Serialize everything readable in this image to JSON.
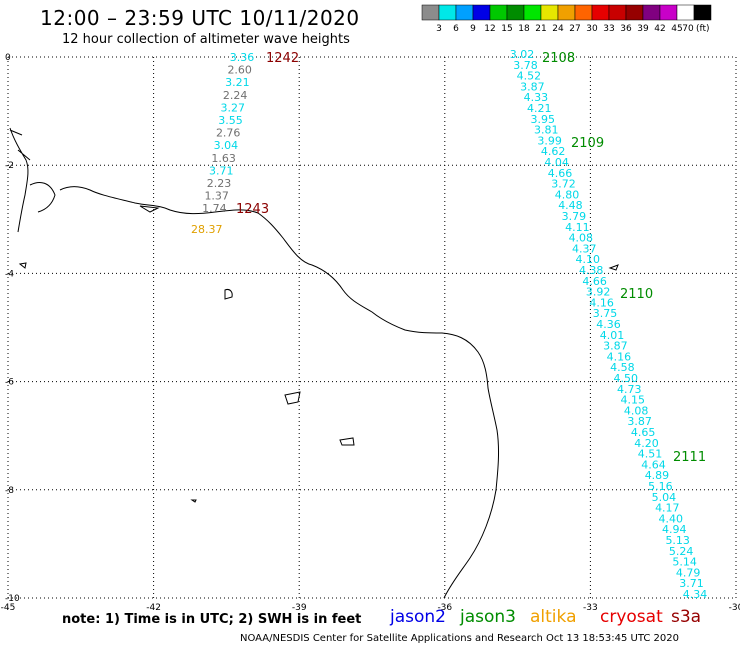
{
  "header": {
    "title": "12:00 – 23:59 UTC 10/11/2020",
    "subtitle": "12 hour collection of altimeter wave heights"
  },
  "legend": {
    "unit": "(ft)",
    "colors": [
      "#8c8c8c",
      "#00e8e8",
      "#00a0ff",
      "#0000e6",
      "#00c800",
      "#008c00",
      "#00e600",
      "#e6e600",
      "#f0a000",
      "#ff6400",
      "#e60000",
      "#c80000",
      "#960000",
      "#800080",
      "#c800c8",
      "#ffffff",
      "#000000"
    ],
    "labels": [
      "3",
      "6",
      "9",
      "12",
      "15",
      "18",
      "21",
      "24",
      "27",
      "30",
      "33",
      "36",
      "39",
      "42",
      "45",
      "70"
    ]
  },
  "axes": {
    "x_ticks": [
      "-45",
      "-42",
      "-39",
      "-36",
      "-33",
      "-30"
    ],
    "y_ticks": [
      "0",
      "-2",
      "-4",
      "-6",
      "-8",
      "-10"
    ]
  },
  "tracks": {
    "track_1242": {
      "label": "1242",
      "values": [
        "3.36",
        "2.60",
        "3.21",
        "2.24",
        "3.27",
        "3.55",
        "2.76",
        "3.04",
        "1.63",
        "3.71",
        "2.23",
        "1.37",
        "1.74"
      ],
      "colors": [
        "cyan",
        "gray",
        "cyan",
        "gray",
        "cyan",
        "cyan",
        "gray",
        "cyan",
        "gray",
        "cyan",
        "gray",
        "gray",
        "gray"
      ]
    },
    "track_1243": {
      "label": "1243"
    },
    "altika_value": "28.37",
    "track_2108": {
      "labels": [
        "2108",
        "2109",
        "2110",
        "2111"
      ],
      "values": [
        "3.02",
        "3.78",
        "4.52",
        "3.87",
        "4.33",
        "4.21",
        "3.95",
        "3.81",
        "3.99",
        "4.62",
        "4.04",
        "4.66",
        "3.72",
        "4.80",
        "4.48",
        "3.79",
        "4.11",
        "4.08",
        "4.37",
        "4.10",
        "4.38",
        "4.66",
        "3.92",
        "4.16",
        "3.75",
        "4.36",
        "4.01",
        "3.87",
        "4.16",
        "4.58",
        "4.50",
        "4.73",
        "4.15",
        "4.08",
        "3.87",
        "4.65",
        "4.20",
        "4.51",
        "4.64",
        "4.89",
        "5.16",
        "5.04",
        "4.17",
        "4.40",
        "4.94",
        "5.13",
        "5.24",
        "5.14",
        "4.79",
        "3.71",
        "4.34"
      ]
    }
  },
  "footer": {
    "note": "note:  1) Time is in UTC;  2) SWH is in feet",
    "satellites": [
      {
        "name": "jason2",
        "color": "#0000e6"
      },
      {
        "name": "jason3",
        "color": "#008c00"
      },
      {
        "name": "altika",
        "color": "#f0a000"
      },
      {
        "name": "cryosat",
        "color": "#e60000"
      },
      {
        "name": "s3a",
        "color": "#960000"
      }
    ],
    "credit": "NOAA/NESDIS Center for Satellite Applications and Research     Oct 13 18:53:45 UTC 2020"
  }
}
